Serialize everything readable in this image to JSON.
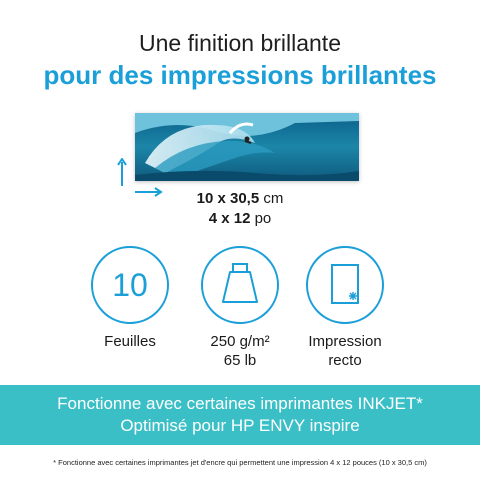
{
  "header": {
    "title_line1": "Une finition brillante",
    "title_line2": "pour des impressions brillantes"
  },
  "size": {
    "metric_value": "10 x 30,5",
    "metric_unit": "cm",
    "imperial_value": "4 x 12",
    "imperial_unit": "po"
  },
  "features": [
    {
      "icon": "number-circle",
      "value": "10",
      "label_line1": "Feuilles",
      "label_line2": ""
    },
    {
      "icon": "weight-icon",
      "label_line1": "250 g/m²",
      "label_line2": "65 lb"
    },
    {
      "icon": "single-sided-sheet-icon",
      "label_line1": "Impression",
      "label_line2": "recto"
    }
  ],
  "banner": {
    "line1": "Fonctionne avec certaines imprimantes INKJET*",
    "line2": "Optimisé pour HP ENVY inspire",
    "color": "#3bbfc7"
  },
  "footnote": "* Fonctionne avec certaines imprimantes jet d'encre qui permettent une impression 4 x 12 pouces (10 x 30,5 cm)",
  "colors": {
    "accent": "#1b9fd8",
    "text": "#1a1a1a"
  }
}
